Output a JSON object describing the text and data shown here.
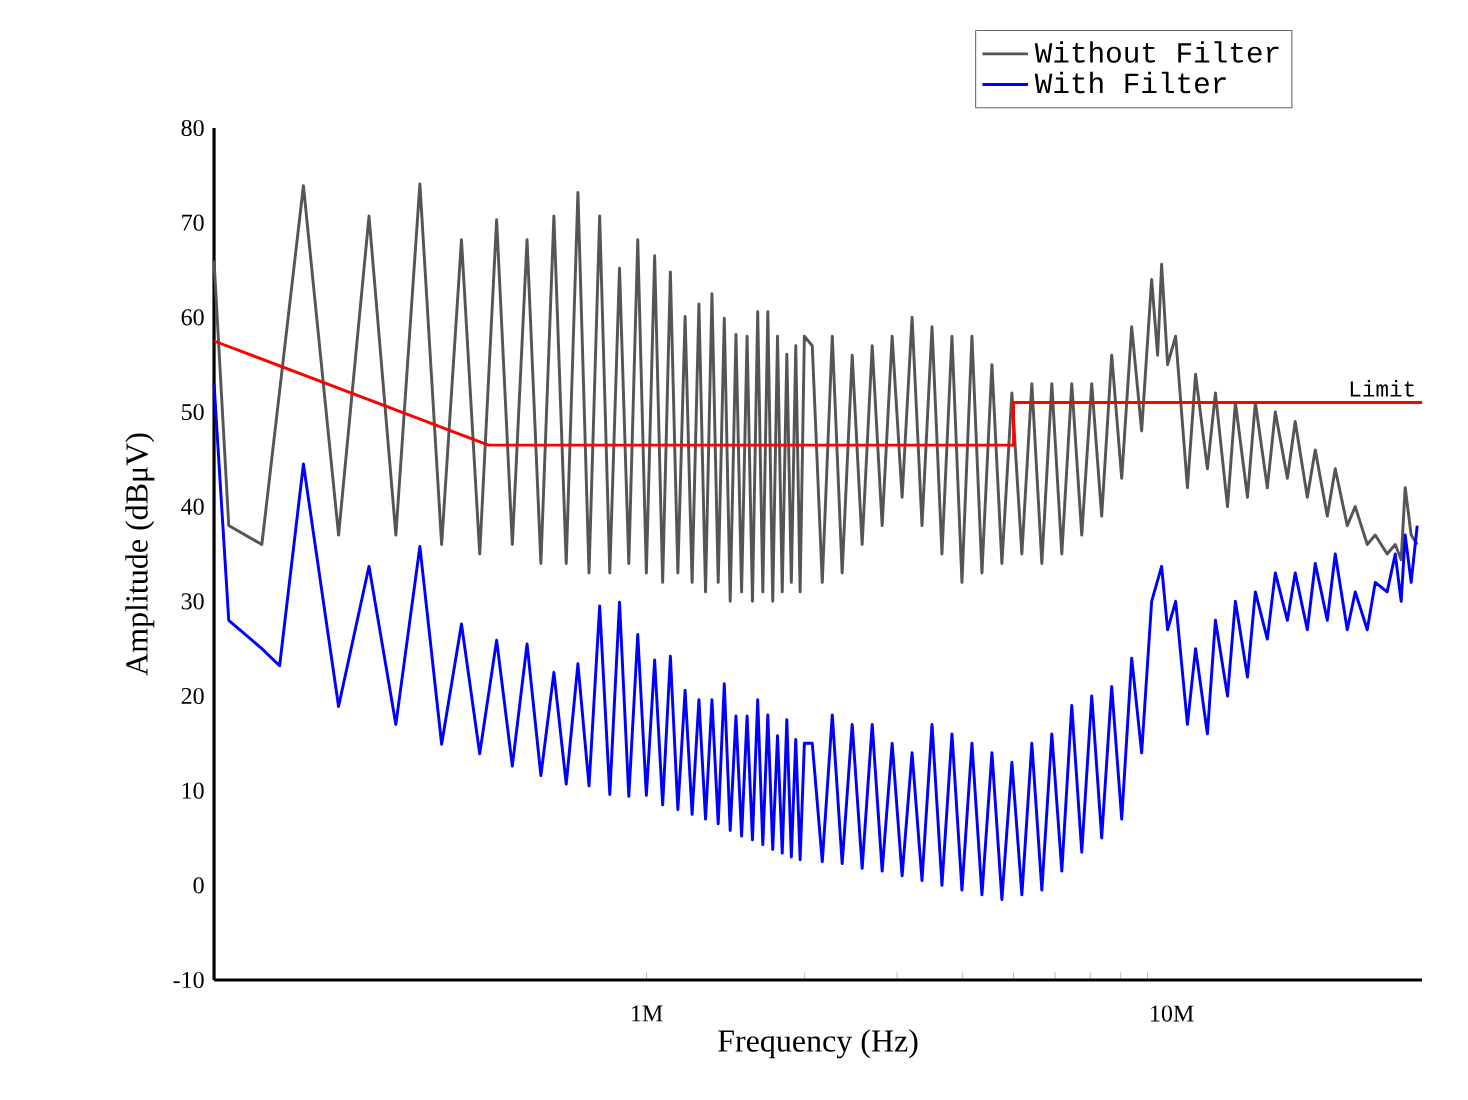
{
  "chart_data": {
    "type": "line",
    "xlabel": "Frequency (Hz)",
    "ylabel": "Amplitude (dBμV)",
    "log": "x",
    "xlim": [
      150000,
      30000000
    ],
    "ylim": [
      -10,
      80
    ],
    "xticks": [
      {
        "value": 1000000,
        "label": "1M"
      },
      {
        "value": 10000000,
        "label": "10M"
      }
    ],
    "yticks": [
      -10,
      0,
      10,
      20,
      30,
      40,
      50,
      60,
      70,
      80
    ],
    "legend": "top right",
    "annotations": [
      "Limit"
    ],
    "series": [
      {
        "name": "Without Filter",
        "color": "#555555",
        "x": [
          150000,
          160000,
          185000,
          222000,
          259000,
          296000,
          333000,
          370000,
          407000,
          444000,
          481000,
          518000,
          555000,
          592000,
          629000,
          666000,
          703000,
          740000,
          777000,
          814000,
          851000,
          888000,
          925000,
          962000,
          999000,
          1036000,
          1073000,
          1110000,
          1147000,
          1184000,
          1221000,
          1258000,
          1295000,
          1332000,
          1369000,
          1406000,
          1443000,
          1480000,
          1517000,
          1554000,
          1591000,
          1628000,
          1665000,
          1702000,
          1739000,
          1776000,
          1813000,
          1850000,
          1887000,
          1924000,
          1961000,
          1998000,
          2068000,
          2161000,
          2258000,
          2358000,
          2464000,
          2574000,
          2690000,
          2810000,
          2936000,
          3067000,
          3204000,
          3347000,
          3497000,
          3653000,
          3817000,
          3988000,
          4166000,
          4353000,
          4548000,
          4751000,
          4964000,
          5186000,
          5418000,
          5661000,
          5914000,
          6179000,
          6455000,
          6744000,
          7046000,
          7361000,
          7691000,
          8035000,
          8395000,
          8770000,
          9163000,
          9406000,
          9572000,
          9827000,
          10180000,
          10720000,
          11110000,
          11700000,
          12120000,
          12780000,
          13230000,
          13950000,
          14440000,
          15220000,
          15760000,
          16620000,
          17200000,
          18140000,
          18780000,
          19800000,
          20500000,
          21610000,
          22380000,
          23590000,
          24430000,
          25740000,
          26670000,
          27370000,
          27860000,
          28600000,
          29370000
        ],
        "values": [
          66,
          38,
          36,
          73.9,
          37,
          70.7,
          37,
          74.1,
          36,
          68.2,
          35,
          70.3,
          36,
          68.2,
          34,
          70.7,
          34,
          73.2,
          33,
          70.7,
          33,
          65.2,
          34,
          68.2,
          33,
          66.5,
          32,
          64.8,
          33,
          60.1,
          32,
          61.4,
          31,
          62.5,
          32,
          59.9,
          30,
          58.2,
          31,
          58,
          30,
          60.6,
          31,
          60.6,
          30,
          58,
          31,
          56.1,
          32,
          57,
          31,
          58,
          57,
          32,
          58,
          33,
          56,
          36,
          57,
          38,
          58,
          41,
          60,
          38,
          59,
          35,
          58,
          32,
          58,
          33,
          55,
          34,
          52,
          35,
          53,
          34,
          53,
          35,
          53,
          37,
          53,
          39,
          56,
          43,
          59,
          48,
          64,
          56,
          65.6,
          55,
          58,
          42,
          54,
          44,
          52,
          40,
          51,
          41,
          51,
          42,
          50,
          43,
          49,
          41,
          46,
          39,
          44,
          38,
          40,
          36,
          37,
          35,
          36,
          34.4,
          42,
          37,
          36
        ]
      },
      {
        "name": "With Filter",
        "color": "#0000ff",
        "x": [
          150000,
          160000,
          185000,
          200000,
          222000,
          259000,
          296000,
          333000,
          370000,
          407000,
          444000,
          481000,
          518000,
          555000,
          592000,
          629000,
          666000,
          703000,
          740000,
          777000,
          814000,
          851000,
          888000,
          925000,
          962000,
          999000,
          1036000,
          1073000,
          1110000,
          1147000,
          1184000,
          1221000,
          1258000,
          1295000,
          1332000,
          1369000,
          1406000,
          1443000,
          1480000,
          1517000,
          1554000,
          1591000,
          1628000,
          1665000,
          1702000,
          1739000,
          1776000,
          1813000,
          1850000,
          1887000,
          1924000,
          1961000,
          1998000,
          2068000,
          2161000,
          2258000,
          2358000,
          2464000,
          2574000,
          2690000,
          2810000,
          2936000,
          3067000,
          3204000,
          3347000,
          3497000,
          3653000,
          3817000,
          3988000,
          4166000,
          4353000,
          4548000,
          4751000,
          4964000,
          5186000,
          5418000,
          5661000,
          5914000,
          6179000,
          6455000,
          6744000,
          7046000,
          7361000,
          7691000,
          8035000,
          8395000,
          8770000,
          9163000,
          9572000,
          9827000,
          10180000,
          10720000,
          11110000,
          11700000,
          12120000,
          12780000,
          13230000,
          13950000,
          14440000,
          15220000,
          15760000,
          16620000,
          17200000,
          18140000,
          18780000,
          19800000,
          20500000,
          21610000,
          22380000,
          23590000,
          24430000,
          25740000,
          26670000,
          27370000,
          27860000,
          28600000,
          29370000
        ],
        "values": [
          53,
          28,
          25,
          23.2,
          44.5,
          18.9,
          33.7,
          17,
          35.8,
          14.9,
          27.6,
          13.9,
          25.9,
          12.6,
          25.5,
          11.6,
          22.5,
          10.7,
          23.4,
          10.5,
          29.5,
          9.6,
          29.9,
          9.4,
          26.5,
          9.5,
          23.8,
          8.5,
          24.2,
          8,
          20.6,
          7.5,
          19.6,
          7,
          19.6,
          6.5,
          21.3,
          5.8,
          17.9,
          5.2,
          17.9,
          4.8,
          19.6,
          4.3,
          18,
          3.8,
          15.8,
          3.4,
          17.5,
          3,
          15.4,
          2.7,
          15,
          15,
          2.5,
          18,
          2.3,
          17,
          1.8,
          17,
          1.5,
          15,
          1,
          14,
          0.5,
          17,
          0,
          16,
          -0.5,
          15,
          -1,
          14,
          -1.5,
          13,
          -1,
          15,
          -0.5,
          16,
          1.5,
          19,
          3.5,
          20,
          5,
          21,
          7,
          24,
          14,
          30,
          33.7,
          27,
          30,
          17,
          25,
          16,
          28,
          20,
          30,
          22,
          31,
          26,
          33,
          28,
          33,
          27,
          34,
          28,
          35,
          27,
          31,
          27,
          32,
          31,
          35,
          30,
          37,
          32,
          38
        ]
      },
      {
        "color": "#ff0000",
        "x": [
          150000,
          500000,
          5000000,
          5000000,
          30000000
        ],
        "values": [
          57.5,
          46.5,
          46.5,
          51,
          51
        ]
      }
    ]
  }
}
